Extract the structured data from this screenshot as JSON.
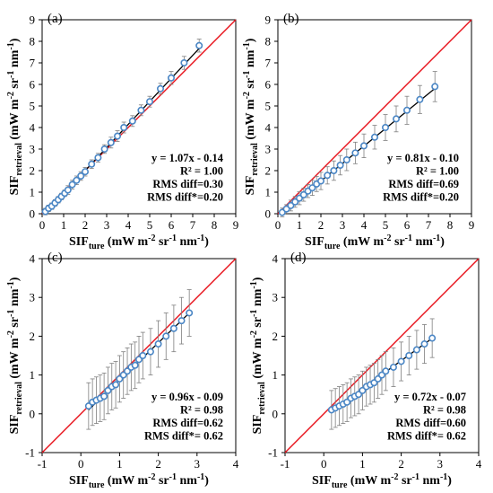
{
  "chart_data": [
    {
      "panel": "(a)",
      "type": "scatter",
      "x": [
        0.15,
        0.3,
        0.45,
        0.6,
        0.75,
        0.9,
        1.05,
        1.2,
        1.4,
        1.6,
        1.8,
        2.0,
        2.3,
        2.6,
        2.9,
        3.2,
        3.5,
        3.8,
        4.2,
        4.6,
        5.0,
        5.5,
        6.0,
        6.6,
        7.3
      ],
      "y": [
        0.1,
        0.25,
        0.35,
        0.5,
        0.65,
        0.8,
        0.95,
        1.1,
        1.35,
        1.55,
        1.75,
        1.95,
        2.3,
        2.6,
        3.0,
        3.3,
        3.6,
        4.0,
        4.3,
        4.8,
        5.2,
        5.8,
        6.3,
        7.0,
        7.8
      ],
      "err": [
        0.15,
        0.15,
        0.15,
        0.15,
        0.15,
        0.15,
        0.15,
        0.2,
        0.2,
        0.2,
        0.2,
        0.2,
        0.2,
        0.2,
        0.2,
        0.25,
        0.25,
        0.25,
        0.25,
        0.25,
        0.25,
        0.25,
        0.3,
        0.3,
        0.3
      ],
      "fit": {
        "slope": 1.07,
        "intercept": -0.14
      },
      "xlim": [
        0,
        9
      ],
      "ylim": [
        0,
        9
      ],
      "xticks": [
        "0",
        "1",
        "2",
        "3",
        "4",
        "5",
        "6",
        "7",
        "8",
        "9"
      ],
      "yticks": [
        "0",
        "1",
        "2",
        "3",
        "4",
        "5",
        "6",
        "7",
        "8",
        "9"
      ],
      "stats": [
        "y = 1.07x - 0.14",
        "R² = 1.00",
        "RMS diff=0.30",
        "RMS diff*=0.20"
      ]
    },
    {
      "panel": "(b)",
      "type": "scatter",
      "x": [
        0.2,
        0.4,
        0.6,
        0.8,
        1.0,
        1.2,
        1.4,
        1.6,
        1.8,
        2.0,
        2.3,
        2.6,
        2.9,
        3.2,
        3.6,
        4.0,
        4.5,
        5.0,
        5.5,
        6.0,
        6.6,
        7.3
      ],
      "y": [
        0.06,
        0.22,
        0.38,
        0.55,
        0.72,
        0.88,
        1.05,
        1.2,
        1.38,
        1.52,
        1.78,
        2.0,
        2.25,
        2.5,
        2.82,
        3.15,
        3.55,
        4.0,
        4.4,
        4.8,
        5.3,
        5.9
      ],
      "err": [
        0.2,
        0.2,
        0.25,
        0.25,
        0.3,
        0.3,
        0.3,
        0.35,
        0.35,
        0.4,
        0.4,
        0.45,
        0.45,
        0.5,
        0.5,
        0.55,
        0.55,
        0.6,
        0.6,
        0.65,
        0.65,
        0.7
      ],
      "fit": {
        "slope": 0.81,
        "intercept": -0.1
      },
      "xlim": [
        0,
        9
      ],
      "ylim": [
        0,
        9
      ],
      "xticks": [
        "0",
        "1",
        "2",
        "3",
        "4",
        "5",
        "6",
        "7",
        "8",
        "9"
      ],
      "yticks": [
        "0",
        "1",
        "2",
        "3",
        "4",
        "5",
        "6",
        "7",
        "8",
        "9"
      ],
      "stats": [
        "y = 0.81x - 0.10",
        "R² = 1.00",
        "RMS diff=0.69",
        "RMS diff*=0.20"
      ]
    },
    {
      "panel": "(c)",
      "type": "scatter",
      "x": [
        0.2,
        0.3,
        0.4,
        0.5,
        0.6,
        0.7,
        0.8,
        0.9,
        1.0,
        1.1,
        1.2,
        1.3,
        1.4,
        1.5,
        1.6,
        1.8,
        2.0,
        2.2,
        2.4,
        2.6,
        2.8
      ],
      "y": [
        0.2,
        0.3,
        0.35,
        0.4,
        0.45,
        0.6,
        0.7,
        0.75,
        0.9,
        1.0,
        1.1,
        1.2,
        1.25,
        1.4,
        1.5,
        1.6,
        1.8,
        2.0,
        2.2,
        2.4,
        2.6
      ],
      "err": [
        0.6,
        0.6,
        0.6,
        0.6,
        0.6,
        0.6,
        0.6,
        0.6,
        0.6,
        0.6,
        0.6,
        0.6,
        0.6,
        0.6,
        0.6,
        0.6,
        0.6,
        0.6,
        0.6,
        0.6,
        0.6
      ],
      "fit": {
        "slope": 0.96,
        "intercept": -0.09
      },
      "xlim": [
        -1,
        4
      ],
      "ylim": [
        -1,
        4
      ],
      "xticks": [
        "-1",
        "0",
        "1",
        "2",
        "3",
        "4"
      ],
      "yticks": [
        "-1",
        "0",
        "1",
        "2",
        "3",
        "4"
      ],
      "stats": [
        "y = 0.96x - 0.09",
        "R² = 0.98",
        "RMS diff=0.62",
        "RMS diff*= 0.62"
      ]
    },
    {
      "panel": "(d)",
      "type": "scatter",
      "x": [
        0.2,
        0.3,
        0.4,
        0.5,
        0.6,
        0.7,
        0.8,
        0.9,
        1.0,
        1.1,
        1.2,
        1.3,
        1.4,
        1.5,
        1.6,
        1.8,
        2.0,
        2.2,
        2.4,
        2.6,
        2.8
      ],
      "y": [
        0.1,
        0.15,
        0.2,
        0.25,
        0.3,
        0.4,
        0.45,
        0.5,
        0.6,
        0.7,
        0.75,
        0.8,
        0.9,
        1.0,
        1.1,
        1.2,
        1.35,
        1.5,
        1.65,
        1.8,
        1.95
      ],
      "err": [
        0.5,
        0.5,
        0.5,
        0.5,
        0.5,
        0.5,
        0.5,
        0.5,
        0.5,
        0.5,
        0.5,
        0.5,
        0.5,
        0.5,
        0.5,
        0.5,
        0.5,
        0.5,
        0.5,
        0.5,
        0.5
      ],
      "fit": {
        "slope": 0.72,
        "intercept": -0.07
      },
      "xlim": [
        -1,
        4
      ],
      "ylim": [
        -1,
        4
      ],
      "xticks": [
        "-1",
        "0",
        "1",
        "2",
        "3",
        "4"
      ],
      "yticks": [
        "-1",
        "0",
        "1",
        "2",
        "3",
        "4"
      ],
      "stats": [
        "y = 0.72x - 0.07",
        "R² = 0.98",
        "RMS diff=0.60",
        "RMS diff*= 0.62"
      ]
    }
  ],
  "axis_titles": {
    "x_main": "SIF",
    "x_sub": "ture",
    "x_unit": " (mW m",
    "y_main": "SIF",
    "y_sub": "retrieval",
    "y_unit": " (mW m",
    "unit_exp1": "-2",
    "unit_mid": " sr",
    "unit_exp2": "-1",
    "unit_mid2": " nm",
    "unit_exp3": "-1",
    "unit_end": ")"
  },
  "colors": {
    "one_to_one": "#e8111b",
    "fit": "#000000",
    "marker": "#4a86c5",
    "errorbar": "#7f7f7f"
  }
}
